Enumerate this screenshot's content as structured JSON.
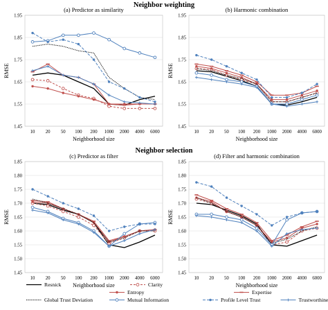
{
  "figure": {
    "section_top": "Neighbor weighting",
    "section_bottom": "Neighbor selection"
  },
  "legend": [
    {
      "name": "Resnick",
      "color": "#000000",
      "dash": "",
      "marker": "none"
    },
    {
      "name": "Clarity",
      "color": "#c0504d",
      "dash": "3,2",
      "marker": "circle"
    },
    {
      "name": "Entropy",
      "color": "#c0504d",
      "dash": "",
      "marker": "dot"
    },
    {
      "name": "Expertise",
      "color": "#c0504d",
      "dash": "",
      "marker": "dash"
    },
    {
      "name": "Global Trust Deviation",
      "color": "#000000",
      "dash": "1.2,1.2",
      "marker": "none"
    },
    {
      "name": "Mutual Information",
      "color": "#4f81bd",
      "dash": "",
      "marker": "circle"
    },
    {
      "name": "Profile Level Trust",
      "color": "#4f81bd",
      "dash": "4,2",
      "marker": "dot"
    },
    {
      "name": "Trustworthiness",
      "color": "#4f81bd",
      "dash": "",
      "marker": "cross"
    }
  ],
  "chart_data": [
    {
      "type": "line",
      "title": "(a) Predictor as similarity",
      "xlabel": "Neighborhood size",
      "ylabel": "RMSE",
      "categories": [
        "10",
        "20",
        "50",
        "100",
        "200",
        "1000",
        "2000",
        "4000",
        "6000"
      ],
      "ylim": [
        1.45,
        1.95
      ],
      "yticks": [
        "1.45",
        "1.55",
        "1.65",
        "1.75",
        "1.85",
        "1.95"
      ],
      "grid": true,
      "series": [
        {
          "name": "Resnick",
          "values": [
            1.68,
            1.69,
            1.68,
            1.65,
            1.62,
            1.55,
            1.545,
            1.57,
            1.585
          ]
        },
        {
          "name": "Clarity",
          "values": [
            1.66,
            1.655,
            1.62,
            1.59,
            1.575,
            1.54,
            1.53,
            1.53,
            1.53
          ]
        },
        {
          "name": "Entropy",
          "values": [
            1.63,
            1.62,
            1.6,
            1.585,
            1.57,
            1.55,
            1.55,
            1.55,
            1.55
          ]
        },
        {
          "name": "Expertise",
          "values": [
            1.695,
            1.73,
            1.68,
            1.67,
            1.64,
            1.55,
            1.545,
            1.55,
            1.55
          ]
        },
        {
          "name": "Global Trust Deviation",
          "values": [
            1.81,
            1.82,
            1.81,
            1.79,
            1.78,
            1.67,
            1.62,
            1.58,
            1.57
          ]
        },
        {
          "name": "Mutual Information",
          "values": [
            1.83,
            1.835,
            1.86,
            1.86,
            1.87,
            1.84,
            1.8,
            1.78,
            1.76
          ]
        },
        {
          "name": "Profile Level Trust",
          "values": [
            1.87,
            1.83,
            1.84,
            1.82,
            1.75,
            1.65,
            1.62,
            1.58,
            1.56
          ]
        },
        {
          "name": "Trustworthiness",
          "values": [
            1.7,
            1.72,
            1.68,
            1.67,
            1.64,
            1.59,
            1.56,
            1.555,
            1.55
          ]
        }
      ]
    },
    {
      "type": "line",
      "title": "(b) Harmonic combination",
      "xlabel": "Neighborhood size",
      "ylabel": "RMSE",
      "categories": [
        "10",
        "20",
        "50",
        "100",
        "200",
        "1000",
        "2000",
        "4000",
        "6000"
      ],
      "ylim": [
        1.45,
        1.95
      ],
      "yticks": [
        "1.45",
        "1.55",
        "1.65",
        "1.75",
        "1.85",
        "1.95"
      ],
      "grid": true,
      "series": [
        {
          "name": "Resnick",
          "values": [
            1.7,
            1.695,
            1.675,
            1.655,
            1.63,
            1.55,
            1.545,
            1.56,
            1.58
          ]
        },
        {
          "name": "Clarity",
          "values": [
            1.71,
            1.705,
            1.68,
            1.66,
            1.64,
            1.56,
            1.56,
            1.58,
            1.6
          ]
        },
        {
          "name": "Entropy",
          "values": [
            1.72,
            1.71,
            1.69,
            1.67,
            1.64,
            1.57,
            1.57,
            1.59,
            1.61
          ]
        },
        {
          "name": "Expertise",
          "values": [
            1.73,
            1.72,
            1.7,
            1.68,
            1.65,
            1.59,
            1.59,
            1.6,
            1.63
          ]
        },
        {
          "name": "Global Trust Deviation",
          "values": [
            1.71,
            1.7,
            1.68,
            1.665,
            1.64,
            1.56,
            1.56,
            1.58,
            1.6
          ]
        },
        {
          "name": "Mutual Information",
          "values": [
            1.69,
            1.68,
            1.66,
            1.65,
            1.63,
            1.55,
            1.55,
            1.57,
            1.59
          ]
        },
        {
          "name": "Profile Level Trust",
          "values": [
            1.77,
            1.75,
            1.72,
            1.69,
            1.66,
            1.58,
            1.58,
            1.6,
            1.64
          ]
        },
        {
          "name": "Trustworthiness",
          "values": [
            1.67,
            1.66,
            1.65,
            1.64,
            1.625,
            1.55,
            1.54,
            1.55,
            1.56
          ]
        }
      ]
    },
    {
      "type": "line",
      "title": "(c) Predictor as filter",
      "xlabel": "Neighborhood size",
      "ylabel": "RMSE",
      "categories": [
        "10",
        "20",
        "50",
        "100",
        "200",
        "1000",
        "2000",
        "4000",
        "6000"
      ],
      "ylim": [
        1.45,
        1.85
      ],
      "yticks": [
        "1.45",
        "1.50",
        "1.55",
        "1.60",
        "1.65",
        "1.70",
        "1.75",
        "1.80",
        "1.85"
      ],
      "grid": true,
      "series": [
        {
          "name": "Resnick",
          "values": [
            1.7,
            1.695,
            1.675,
            1.66,
            1.63,
            1.55,
            1.54,
            1.56,
            1.585
          ]
        },
        {
          "name": "Clarity",
          "values": [
            1.7,
            1.69,
            1.67,
            1.65,
            1.62,
            1.555,
            1.575,
            1.6,
            1.6
          ]
        },
        {
          "name": "Entropy",
          "values": [
            1.705,
            1.7,
            1.68,
            1.66,
            1.63,
            1.56,
            1.58,
            1.6,
            1.605
          ]
        },
        {
          "name": "Expertise",
          "values": [
            1.71,
            1.705,
            1.68,
            1.66,
            1.635,
            1.565,
            1.58,
            1.6,
            1.605
          ]
        },
        {
          "name": "Global Trust Deviation",
          "values": [
            1.715,
            1.7,
            1.68,
            1.66,
            1.63,
            1.56,
            1.575,
            1.6,
            1.6
          ]
        },
        {
          "name": "Mutual Information",
          "values": [
            1.685,
            1.67,
            1.645,
            1.63,
            1.6,
            1.545,
            1.59,
            1.625,
            1.63
          ]
        },
        {
          "name": "Profile Level Trust",
          "values": [
            1.75,
            1.725,
            1.7,
            1.68,
            1.655,
            1.6,
            1.615,
            1.625,
            1.625
          ]
        },
        {
          "name": "Trustworthiness",
          "values": [
            1.675,
            1.665,
            1.64,
            1.625,
            1.595,
            1.545,
            1.565,
            1.59,
            1.605
          ]
        }
      ]
    },
    {
      "type": "line",
      "title": "(d) Filter and harmonic combination",
      "xlabel": "Neighborhood size",
      "ylabel": "RMSE",
      "categories": [
        "10",
        "20",
        "50",
        "100",
        "200",
        "1000",
        "2000",
        "4000",
        "6000"
      ],
      "ylim": [
        1.45,
        1.85
      ],
      "yticks": [
        "1.45",
        "1.50",
        "1.55",
        "1.60",
        "1.65",
        "1.70",
        "1.75",
        "1.80",
        "1.85"
      ],
      "grid": true,
      "series": [
        {
          "name": "Resnick",
          "values": [
            1.7,
            1.695,
            1.675,
            1.655,
            1.625,
            1.55,
            1.545,
            1.565,
            1.585
          ]
        },
        {
          "name": "Clarity",
          "values": [
            1.715,
            1.7,
            1.67,
            1.65,
            1.62,
            1.55,
            1.56,
            1.6,
            1.61
          ]
        },
        {
          "name": "Entropy",
          "values": [
            1.72,
            1.705,
            1.67,
            1.65,
            1.62,
            1.56,
            1.575,
            1.61,
            1.625
          ]
        },
        {
          "name": "Expertise",
          "values": [
            1.73,
            1.71,
            1.68,
            1.66,
            1.63,
            1.565,
            1.585,
            1.615,
            1.635
          ]
        },
        {
          "name": "Global Trust Deviation",
          "values": [
            1.72,
            1.7,
            1.67,
            1.65,
            1.62,
            1.555,
            1.57,
            1.6,
            1.615
          ]
        },
        {
          "name": "Mutual Information",
          "values": [
            1.66,
            1.66,
            1.65,
            1.64,
            1.61,
            1.55,
            1.64,
            1.665,
            1.67
          ]
        },
        {
          "name": "Profile Level Trust",
          "values": [
            1.775,
            1.76,
            1.72,
            1.69,
            1.66,
            1.62,
            1.65,
            1.665,
            1.67
          ]
        },
        {
          "name": "Trustworthiness",
          "values": [
            1.655,
            1.65,
            1.64,
            1.63,
            1.6,
            1.545,
            1.59,
            1.605,
            1.61
          ]
        }
      ]
    }
  ]
}
